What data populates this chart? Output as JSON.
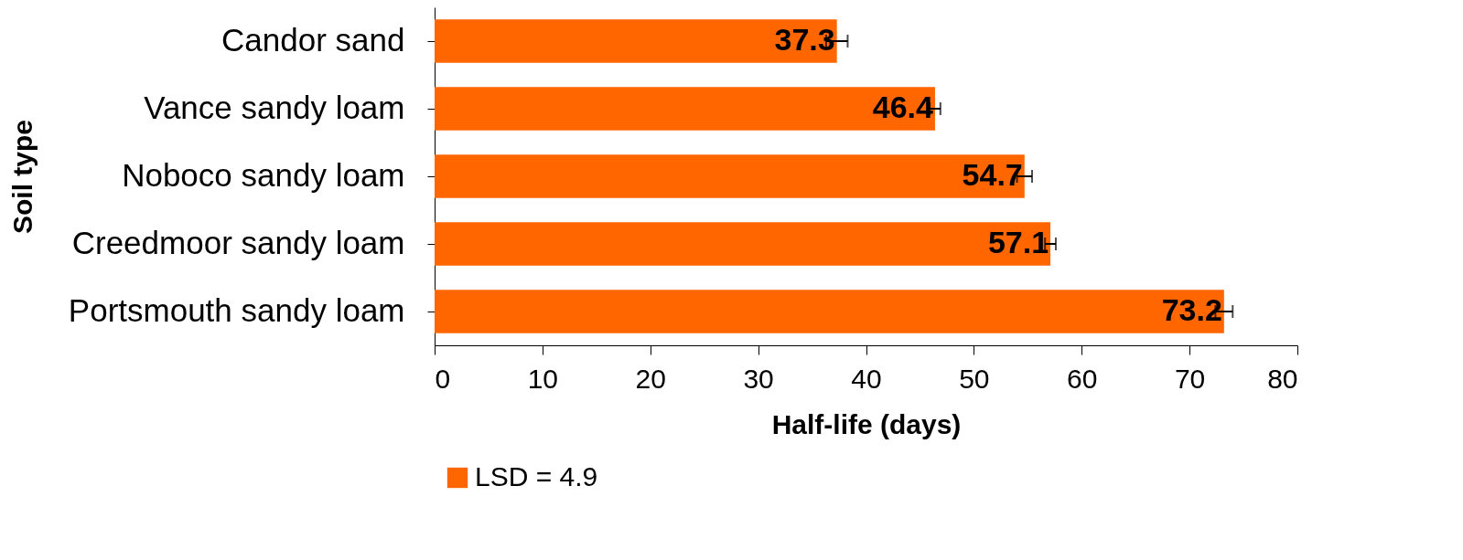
{
  "chart_data": {
    "type": "bar",
    "orientation": "horizontal",
    "xlabel": "Half-life (days)",
    "ylabel": "Soil type",
    "categories": [
      "Candor sand",
      "Vance sandy loam",
      "Noboco sandy loam",
      "Creedmoor sandy loam",
      "Portsmouth sandy loam"
    ],
    "series": [
      {
        "name": "LSD = 4.9",
        "color": "#ff6600",
        "values": [
          37.3,
          46.4,
          54.7,
          57.1,
          73.2
        ],
        "errors": [
          1.0,
          0.5,
          0.7,
          0.5,
          0.8
        ]
      }
    ],
    "xlim": [
      0,
      80
    ],
    "xticks": [
      0,
      10,
      20,
      30,
      40,
      50,
      60,
      70,
      80
    ],
    "data_labels": true,
    "legend": "bottom",
    "grid": false
  }
}
